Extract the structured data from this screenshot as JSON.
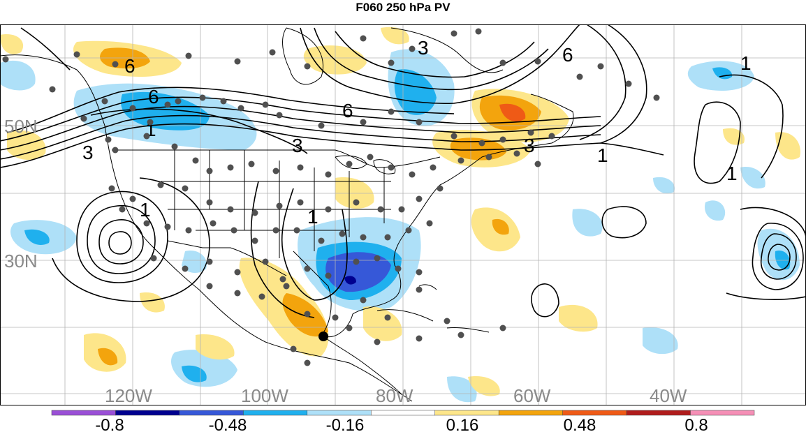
{
  "title": "F060 250 hPa PV",
  "map": {
    "lat_labels": [
      "50N",
      "30N"
    ],
    "lon_labels": [
      "120W",
      "100W",
      "80W",
      "60W",
      "40W"
    ],
    "contour_labels": [
      "6",
      "6",
      "6",
      "6",
      "3",
      "3",
      "3",
      "3",
      "1",
      "1",
      "1",
      "1",
      "1",
      "1"
    ],
    "colors": {
      "neg_strong": "#00008f",
      "neg_med": "#3658d8",
      "neg": "#1fb0ee",
      "neg_light": "#aee0f8",
      "pos_light": "#fde68a",
      "pos": "#f3a40d",
      "pos_strong": "#ef5a16",
      "land_line": "#000000",
      "station": "#505050"
    }
  },
  "colorbar": {
    "labels": [
      "-0.8",
      "-0.48",
      "-0.16",
      "0.16",
      "0.48",
      "0.8"
    ],
    "colors": [
      "#9a4fd6",
      "#00008f",
      "#3658d8",
      "#1fb0ee",
      "#aee0f8",
      "#ffffff",
      "#fde68a",
      "#f3a40d",
      "#ef5a16",
      "#b01c1c",
      "#f58fb6"
    ]
  }
}
